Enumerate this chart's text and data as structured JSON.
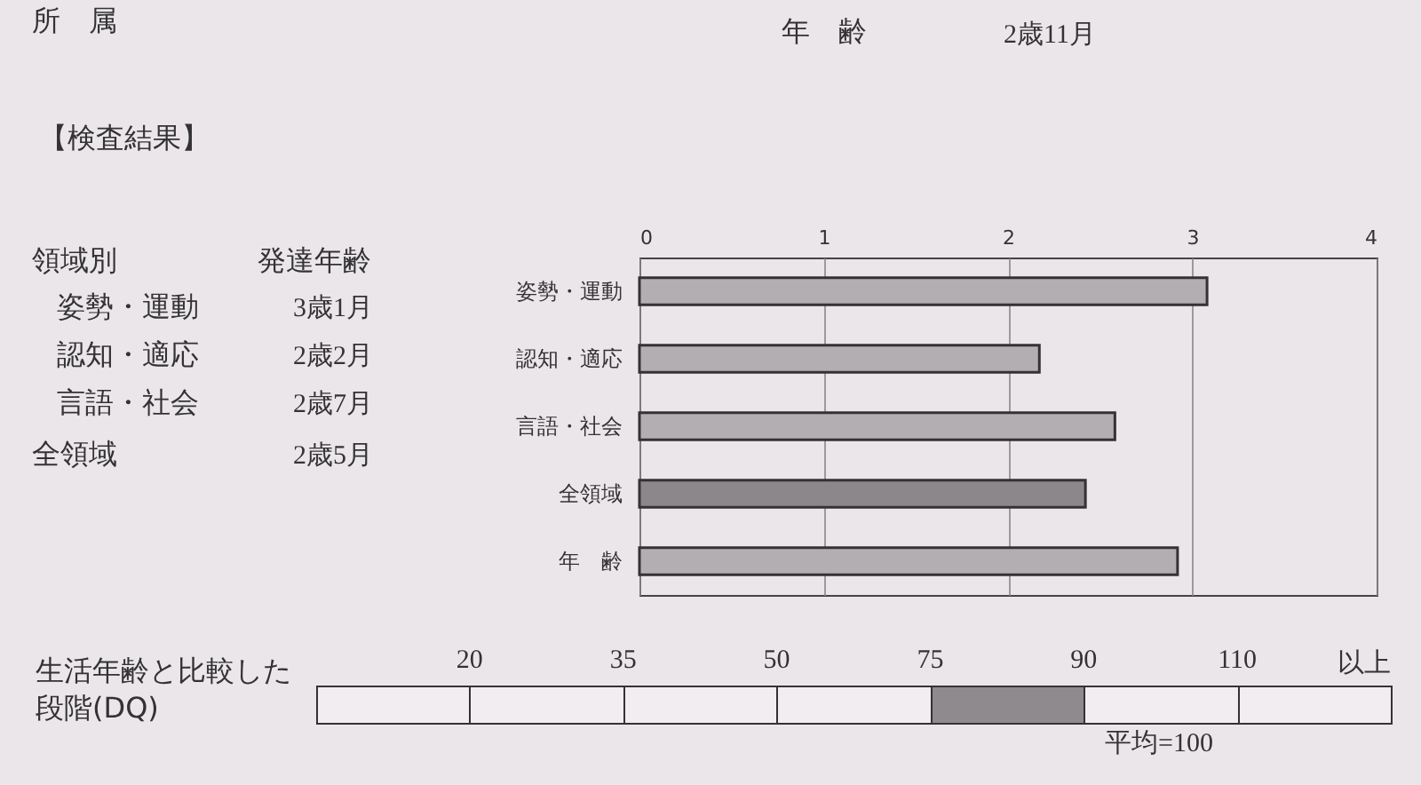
{
  "chart_data": [
    {
      "type": "bar",
      "orientation": "horizontal",
      "categories": [
        "姿勢・運動",
        "認知・適応",
        "言語・社会",
        "全領域",
        "年　齢"
      ],
      "values": [
        3.08,
        2.17,
        2.58,
        2.42,
        2.92
      ],
      "colors": [
        "#b3aeb2",
        "#b3aeb2",
        "#b3aeb2",
        "#8c878b",
        "#b3aeb2"
      ],
      "xlim": [
        0,
        4
      ],
      "xticks": [
        0,
        1,
        2,
        3,
        4
      ],
      "grid": "x",
      "annotations": [
        "所　属",
        "年　齢",
        "2歳11月",
        "【検査結果】",
        "領域別",
        "発達年齢",
        "姿勢・運動",
        "3歳1月",
        "認知・適応",
        "2歳2月",
        "言語・社会",
        "2歳7月",
        "全領域",
        "2歳5月"
      ]
    },
    {
      "type": "other",
      "ylabel": "生活年齢と比較した段階(DQ)",
      "categories": [
        "20",
        "35",
        "50",
        "75",
        "90",
        "110",
        "以上"
      ],
      "colors": [
        "#f1edf0",
        "#f1edf0",
        "#f1edf0",
        "#f1edf0",
        "#8f8a8e",
        "#f1edf0",
        "#f1edf0"
      ],
      "annotations": [
        "平均=100"
      ]
    }
  ]
}
